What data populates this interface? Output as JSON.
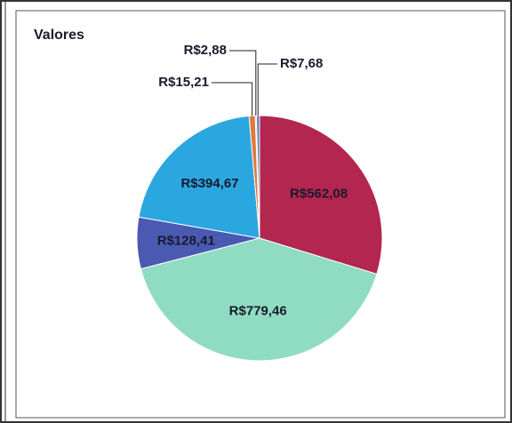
{
  "chart_data": {
    "type": "pie",
    "title": "Valores",
    "categories": [
      null,
      null,
      null,
      null,
      null,
      null,
      null
    ],
    "values": [
      562.08,
      779.46,
      128.41,
      394.67,
      15.21,
      2.88,
      7.68
    ],
    "value_labels": [
      "R$562,08",
      "R$779,46",
      "R$128,41",
      "R$394,67",
      "R$15,21",
      "R$2,88",
      "R$7,68"
    ],
    "colors": [
      "#b3264f",
      "#8fdcc2",
      "#4a5ab2",
      "#2ba7df",
      "#e07a3a",
      "#9aa7b0",
      "#5f7fb5"
    ]
  }
}
